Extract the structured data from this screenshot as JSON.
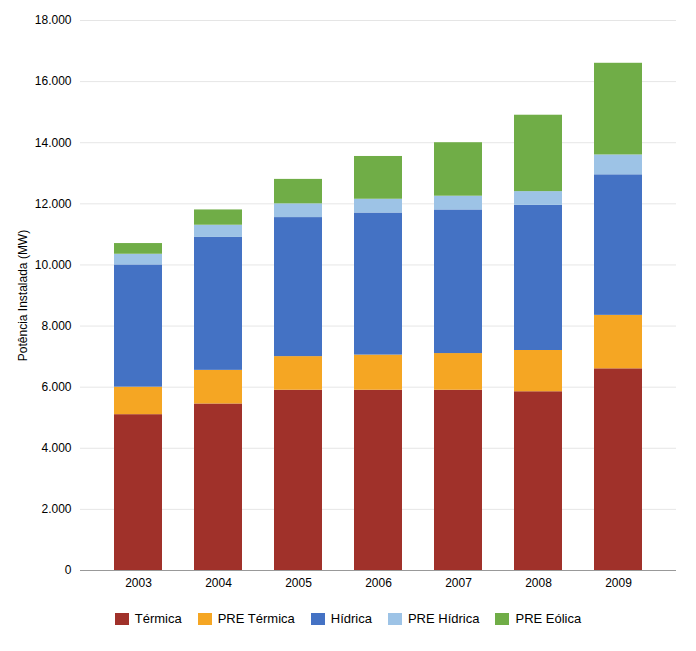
{
  "chart_data": {
    "type": "bar",
    "stacked": true,
    "categories": [
      "2003",
      "2004",
      "2005",
      "2006",
      "2007",
      "2008",
      "2009"
    ],
    "series": [
      {
        "name": "Térmica",
        "color": "#A0312A",
        "values": [
          5100,
          5450,
          5900,
          5900,
          5900,
          5850,
          6600
        ]
      },
      {
        "name": "PRE Térmica",
        "color": "#F5A623",
        "values": [
          900,
          1100,
          1100,
          1150,
          1200,
          1350,
          1750
        ]
      },
      {
        "name": "Hídrica",
        "color": "#4472C4",
        "values": [
          4000,
          4350,
          4550,
          4650,
          4700,
          4750,
          4600
        ]
      },
      {
        "name": "PRE Hídrica",
        "color": "#9DC3E6",
        "values": [
          350,
          400,
          450,
          450,
          450,
          450,
          650
        ]
      },
      {
        "name": "PRE Eólica",
        "color": "#70AD47",
        "values": [
          350,
          500,
          800,
          1400,
          1750,
          2500,
          3000
        ]
      }
    ],
    "ylabel": "Potência Instalada (MW)",
    "ylim": [
      0,
      18000
    ],
    "yticks": [
      0,
      {
        "value": 2000,
        "label": "2.000"
      },
      {
        "value": 4000,
        "label": "4.000"
      },
      {
        "value": 6000,
        "label": "6.000"
      },
      {
        "value": 8000,
        "label": "8.000"
      },
      {
        "value": 10000,
        "label": "10.000"
      },
      {
        "value": 12000,
        "label": "12.000"
      },
      {
        "value": 14000,
        "label": "14.000"
      },
      {
        "value": 16000,
        "label": "16.000"
      },
      {
        "value": 18000,
        "label": "18.000"
      }
    ],
    "grid": true,
    "legend": "bottom"
  }
}
